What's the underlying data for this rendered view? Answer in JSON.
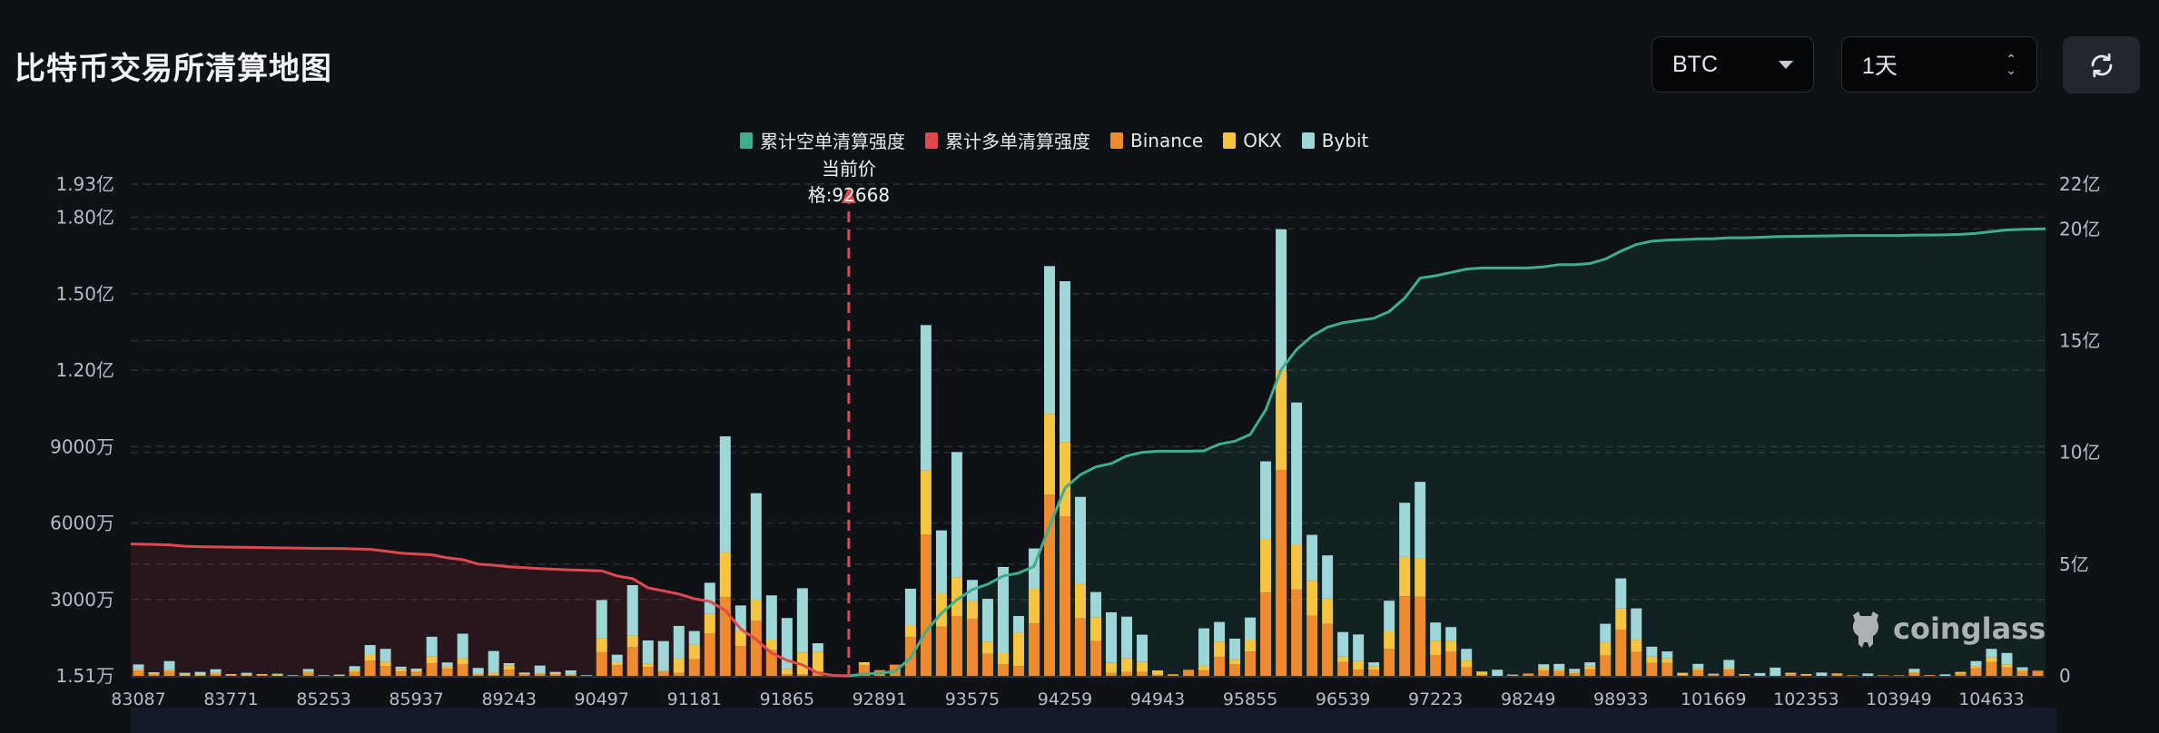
{
  "header": {
    "title": "比特币交易所清算地图"
  },
  "controls": {
    "symbol": {
      "value": "BTC",
      "icon": "caret-down-icon"
    },
    "period": {
      "value": "1天",
      "icon": "up-down-chevron-icon"
    },
    "refresh": {
      "icon": "refresh-icon"
    }
  },
  "watermark": {
    "text": "coinglass"
  },
  "colors": {
    "short_cum": "#3fae8c",
    "long_cum": "#e0484f",
    "binance": "#ee8a2f",
    "okx": "#f5c542",
    "bybit": "#9fd6d8",
    "background": "#0e1116"
  },
  "chart_data": {
    "type": "bar",
    "stacked": true,
    "legend": [
      "累计空单清算强度",
      "累计多单清算强度",
      "Binance",
      "OKX",
      "Bybit"
    ],
    "legend_position": "top",
    "current_price_label": "当前价格:92668",
    "current_price_bar": 46,
    "grid": true,
    "x_tick_labels": [
      "83087",
      "83771",
      "85253",
      "85937",
      "89243",
      "90497",
      "91181",
      "91865",
      "92891",
      "93575",
      "94259",
      "94943",
      "95855",
      "96539",
      "97223",
      "98249",
      "98933",
      "101669",
      "102353",
      "103949",
      "104633"
    ],
    "x_tick_every": 6,
    "y_left": {
      "unit": "万",
      "ylim": [
        0,
        19300
      ],
      "ticks": [
        {
          "v": 19300,
          "label": "1.93亿"
        },
        {
          "v": 18000,
          "label": "1.80亿"
        },
        {
          "v": 15000,
          "label": "1.50亿"
        },
        {
          "v": 12000,
          "label": "1.20亿"
        },
        {
          "v": 9000,
          "label": "9000万"
        },
        {
          "v": 6000,
          "label": "6000万"
        },
        {
          "v": 3000,
          "label": "3000万"
        },
        {
          "v": 1.51,
          "label": "1.51万"
        }
      ]
    },
    "y_right": {
      "unit": "亿",
      "ylim": [
        0,
        22
      ],
      "ticks": [
        {
          "v": 22,
          "label": "22亿"
        },
        {
          "v": 20,
          "label": "20亿"
        },
        {
          "v": 15,
          "label": "15亿"
        },
        {
          "v": 10,
          "label": "10亿"
        },
        {
          "v": 5,
          "label": "5亿"
        },
        {
          "v": 0,
          "label": "0"
        }
      ]
    },
    "series": [
      {
        "name": "Binance",
        "axis": "left",
        "values": [
          200,
          90,
          180,
          40,
          40,
          90,
          40,
          40,
          40,
          30,
          15,
          120,
          15,
          20,
          150,
          595,
          380,
          170,
          160,
          500,
          290,
          450,
          60,
          30,
          240,
          60,
          60,
          60,
          40,
          15,
          930,
          415,
          1130,
          355,
          180,
          120,
          655,
          1660,
          3090,
          1165,
          2160,
          1010,
          60,
          60,
          180,
          0,
          0,
          415,
          225,
          440,
          1520,
          5555,
          1935,
          2350,
          2230,
          865,
          450,
          390,
          2055,
          7120,
          6255,
          2255,
          1365,
          120,
          155,
          155,
          40,
          30,
          240,
          215,
          750,
          450,
          950,
          3270,
          8085,
          3390,
          2370,
          2045,
          540,
          240,
          240,
          1060,
          3130,
          3105,
          820,
          960,
          335,
          40,
          0,
          30,
          95,
          215,
          180,
          100,
          265,
          805,
          1805,
          940,
          505,
          505,
          30,
          230,
          60,
          240,
          50,
          0,
          0,
          60,
          40,
          0,
          50,
          25,
          0,
          25,
          25,
          120,
          35,
          0,
          80,
          300,
          540,
          335,
          180,
          205
        ]
      },
      {
        "name": "OKX",
        "axis": "left",
        "values": [
          60,
          20,
          60,
          10,
          15,
          30,
          30,
          10,
          30,
          10,
          5,
          50,
          5,
          5,
          80,
          240,
          180,
          90,
          50,
          275,
          80,
          240,
          30,
          100,
          180,
          60,
          40,
          80,
          20,
          5,
          535,
          120,
          450,
          120,
          25,
          560,
          570,
          770,
          1755,
          595,
          830,
          415,
          215,
          855,
          770,
          0,
          0,
          120,
          0,
          0,
          475,
          2515,
          1305,
          1510,
          710,
          475,
          440,
          1305,
          1365,
          3160,
          2920,
          1375,
          925,
          390,
          535,
          390,
          175,
          30,
          0,
          180,
          595,
          200,
          475,
          2105,
          3910,
          1755,
          1360,
          985,
          215,
          335,
          145,
          685,
          1540,
          1490,
          565,
          420,
          265,
          130,
          0,
          0,
          0,
          85,
          60,
          50,
          120,
          515,
          840,
          480,
          250,
          180,
          90,
          60,
          0,
          60,
          0,
          0,
          0,
          60,
          30,
          0,
          45,
          0,
          0,
          0,
          0,
          40,
          0,
          0,
          75,
          85,
          180,
          120,
          60,
          0
        ]
      },
      {
        "name": "Bybit",
        "axis": "left",
        "values": [
          190,
          30,
          340,
          70,
          100,
          140,
          0,
          70,
          0,
          45,
          5,
          100,
          5,
          25,
          150,
          375,
          500,
          100,
          75,
          760,
          155,
          965,
          220,
          845,
          80,
          10,
          305,
          15,
          155,
          5,
          1510,
          295,
          1980,
          915,
          1160,
          1280,
          535,
          1225,
          4555,
          1005,
          4180,
          1735,
          1995,
          2525,
          330,
          0,
          0,
          0,
          0,
          0,
          1425,
          5700,
          2470,
          4925,
          825,
          1685,
          3385,
          655,
          1580,
          5805,
          6315,
          3395,
          1000,
          1985,
          1635,
          1070,
          0,
          0,
          0,
          1470,
          770,
          810,
          865,
          3045,
          5535,
          5585,
          1805,
          1700,
          965,
          1050,
          145,
          1205,
          2125,
          3020,
          710,
          535,
          460,
          0,
          240,
          20,
          0,
          155,
          230,
          125,
          145,
          725,
          1180,
          1230,
          390,
          275,
          0,
          180,
          25,
          325,
          20,
          110,
          325,
          0,
          0,
          130,
          0,
          0,
          95,
          0,
          0,
          115,
          0,
          60,
          0,
          195,
          340,
          445,
          95,
          0
        ]
      },
      {
        "name": "累计多单清算强度",
        "type": "area-line",
        "axis": "right",
        "values": [
          5.9,
          5.88,
          5.86,
          5.8,
          5.78,
          5.77,
          5.76,
          5.75,
          5.74,
          5.73,
          5.72,
          5.71,
          5.7,
          5.7,
          5.68,
          5.66,
          5.58,
          5.49,
          5.45,
          5.42,
          5.28,
          5.2,
          5.0,
          4.95,
          4.88,
          4.84,
          4.8,
          4.77,
          4.74,
          4.72,
          4.7,
          4.47,
          4.35,
          3.94,
          3.8,
          3.66,
          3.45,
          3.33,
          2.93,
          2.1,
          1.63,
          1.02,
          0.69,
          0.49,
          0.13,
          0.02,
          0
        ]
      },
      {
        "name": "累计空单清算强度",
        "type": "area-line",
        "axis": "right",
        "start_bar": 46,
        "values": [
          0,
          0.08,
          0.12,
          0.2,
          0.8,
          2.0,
          2.8,
          3.4,
          3.86,
          4.1,
          4.47,
          4.6,
          4.9,
          6.7,
          8.4,
          9.0,
          9.35,
          9.5,
          9.84,
          10.0,
          10.05,
          10.05,
          10.05,
          10.07,
          10.37,
          10.5,
          10.8,
          11.9,
          13.7,
          14.6,
          15.2,
          15.6,
          15.8,
          15.9,
          16.0,
          16.3,
          16.9,
          17.8,
          17.9,
          18.05,
          18.2,
          18.25,
          18.25,
          18.25,
          18.25,
          18.3,
          18.4,
          18.4,
          18.45,
          18.65,
          19.0,
          19.3,
          19.45,
          19.5,
          19.52,
          19.55,
          19.56,
          19.6,
          19.6,
          19.62,
          19.65,
          19.66,
          19.67,
          19.68,
          19.69,
          19.7,
          19.7,
          19.7,
          19.7,
          19.72,
          19.72,
          19.73,
          19.75,
          19.8,
          19.88,
          19.95,
          19.98,
          20.0
        ]
      }
    ]
  }
}
